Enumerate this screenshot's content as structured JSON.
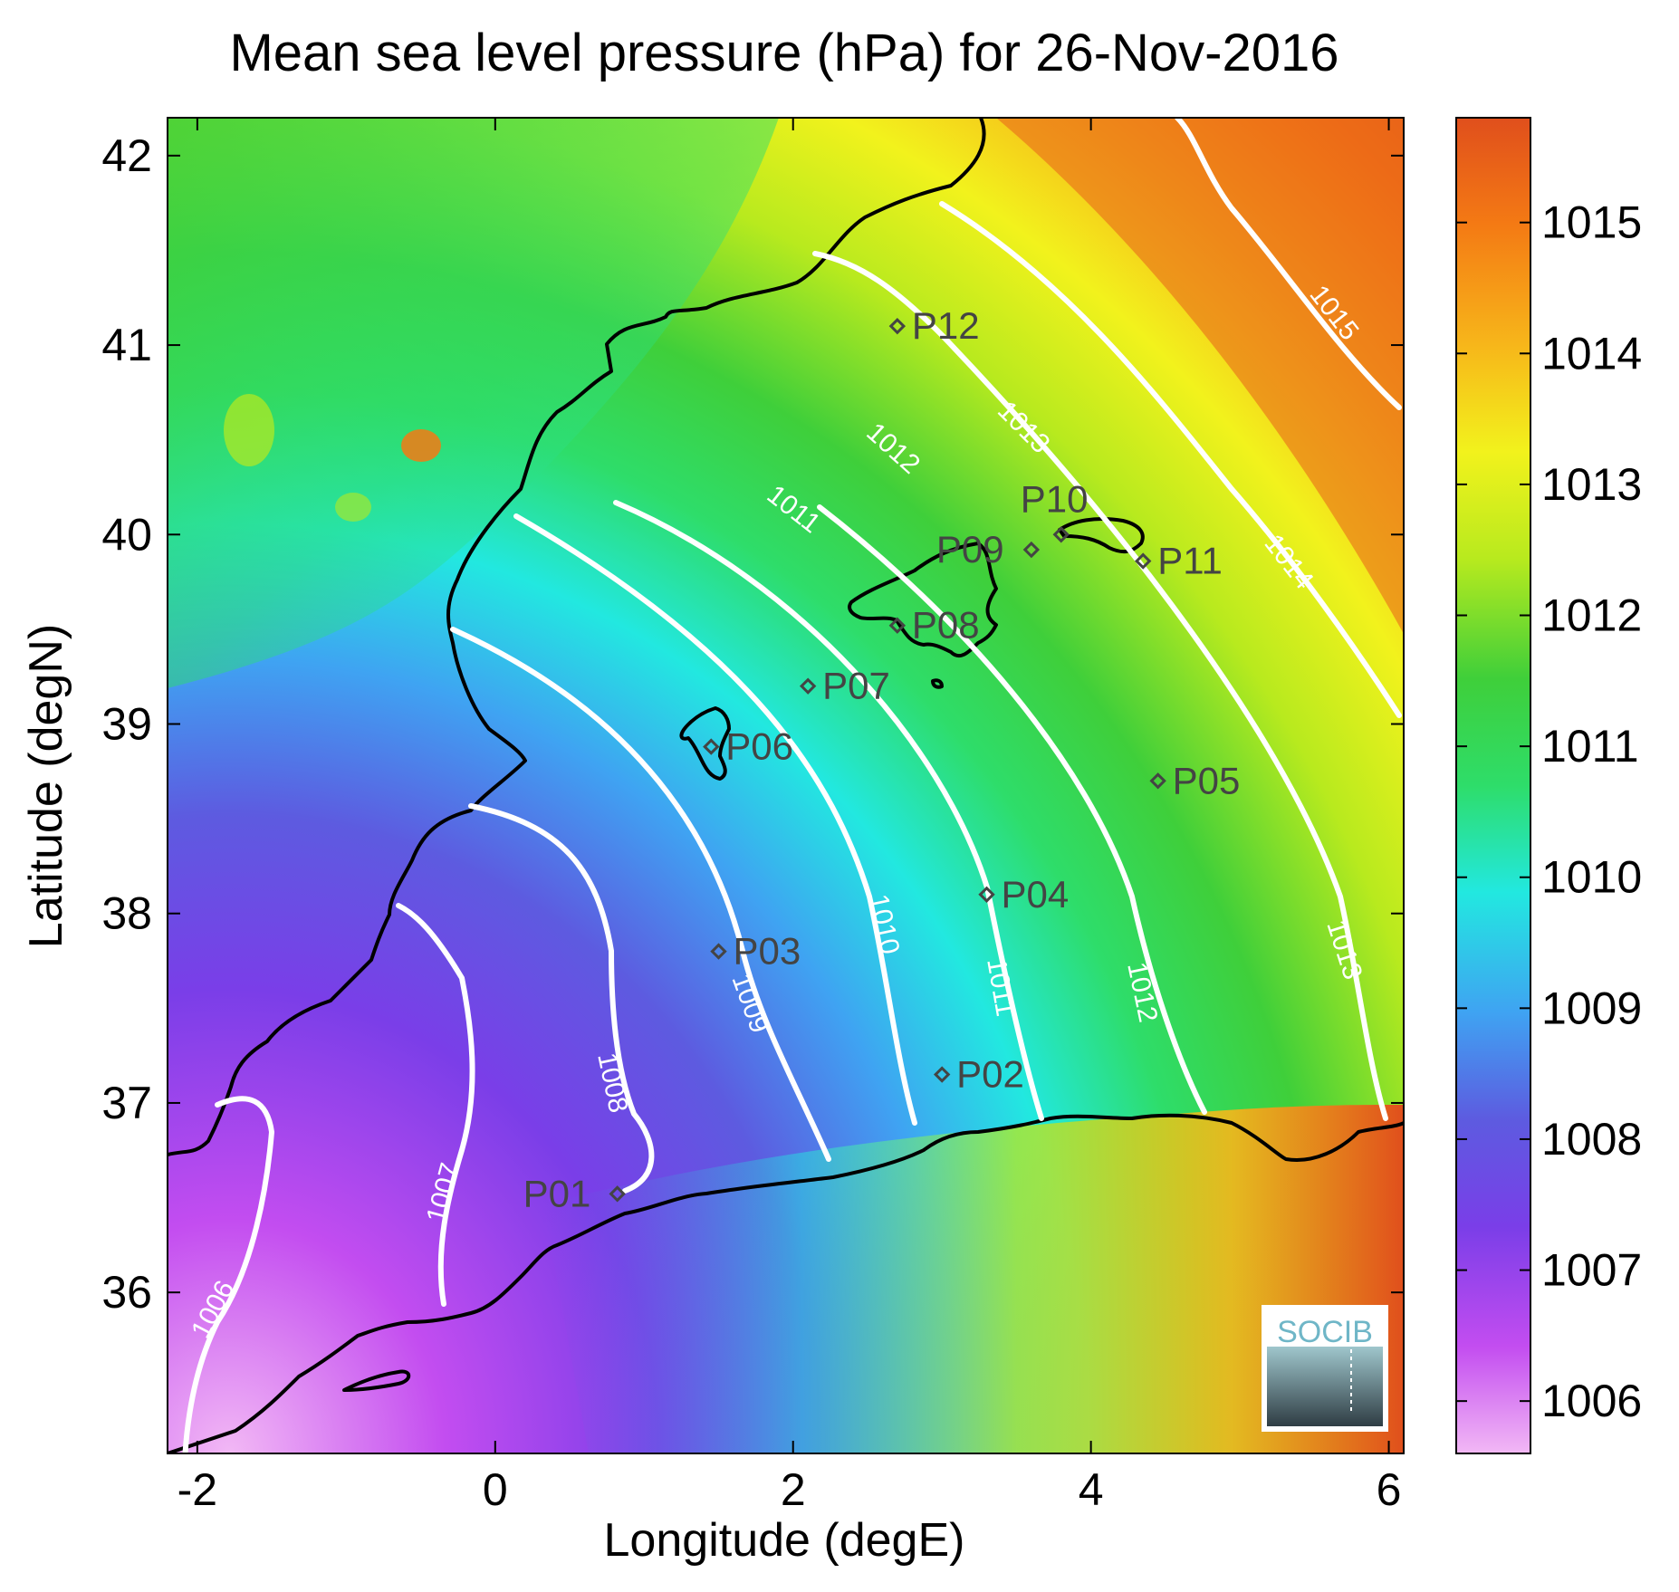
{
  "title": "Mean sea level pressure (hPa) for 26-Nov-2016",
  "axes": {
    "xlabel": "Longitude (degE)",
    "ylabel": "Latitude (degN)",
    "xticks": [
      "-2",
      "0",
      "2",
      "4",
      "6"
    ],
    "yticks": [
      "42",
      "41",
      "40",
      "39",
      "38",
      "37",
      "36"
    ],
    "xlim": [
      -2.2,
      6.1
    ],
    "ylim": [
      35.15,
      42.2
    ]
  },
  "colorbar": {
    "ticks": [
      "1015",
      "1014",
      "1013",
      "1012",
      "1011",
      "1010",
      "1009",
      "1008",
      "1007",
      "1006"
    ],
    "range": [
      1005.6,
      1015.8
    ],
    "colors": [
      "#f2b8f5",
      "#c34df0",
      "#7a3ee8",
      "#5d5be0",
      "#3fa3f2",
      "#22e8e0",
      "#2edd6a",
      "#3fcf3a",
      "#b8ea1e",
      "#f2f21c",
      "#f7b61a",
      "#f47a14",
      "#e04f1c"
    ]
  },
  "contours": [
    {
      "label": "1006"
    },
    {
      "label": "1007"
    },
    {
      "label": "1008"
    },
    {
      "label": "1009"
    },
    {
      "label": "1010"
    },
    {
      "label": "1011"
    },
    {
      "label": "1012"
    },
    {
      "label": "1013"
    },
    {
      "label": "1014"
    },
    {
      "label": "1015"
    }
  ],
  "stations": [
    {
      "name": "P01",
      "lon": 0.82,
      "lat": 36.52
    },
    {
      "name": "P02",
      "lon": 3.0,
      "lat": 37.15
    },
    {
      "name": "P03",
      "lon": 1.5,
      "lat": 37.8
    },
    {
      "name": "P04",
      "lon": 3.3,
      "lat": 38.1
    },
    {
      "name": "P05",
      "lon": 4.45,
      "lat": 38.7
    },
    {
      "name": "P06",
      "lon": 1.45,
      "lat": 38.88
    },
    {
      "name": "P07",
      "lon": 2.1,
      "lat": 39.2
    },
    {
      "name": "P08",
      "lon": 2.7,
      "lat": 39.52
    },
    {
      "name": "P09",
      "lon": 3.6,
      "lat": 39.92
    },
    {
      "name": "P10",
      "lon": 3.8,
      "lat": 40.0
    },
    {
      "name": "P11",
      "lon": 4.35,
      "lat": 39.86
    },
    {
      "name": "P12",
      "lon": 2.7,
      "lat": 41.1
    }
  ],
  "logo": {
    "text": "SOCIB"
  }
}
